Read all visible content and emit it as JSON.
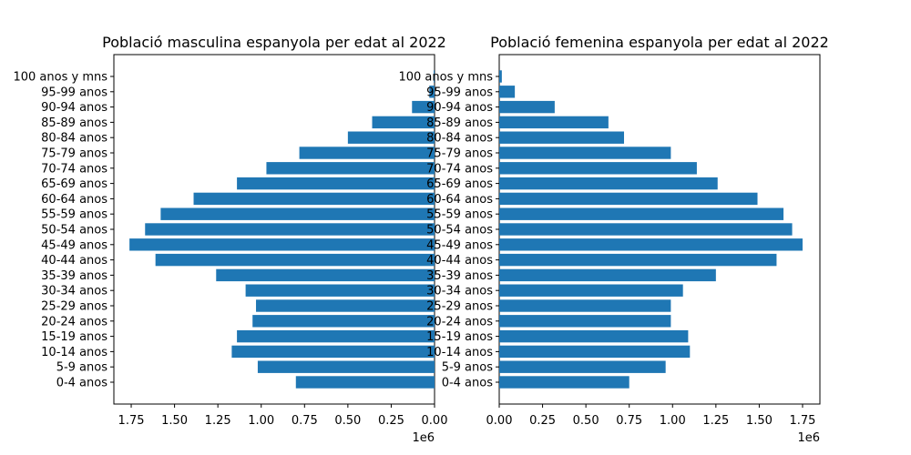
{
  "chart_data": [
    {
      "type": "bar",
      "orientation": "horizontal",
      "title": "Població masculina espanyola per edat al 2022",
      "xaxis_inverted": true,
      "xlim": [
        1.85,
        0.0
      ],
      "xticks": [
        "1.75",
        "1.50",
        "1.25",
        "1.00",
        "0.75",
        "0.50",
        "0.25",
        "0.00"
      ],
      "xtick_values": [
        1.75,
        1.5,
        1.25,
        1.0,
        0.75,
        0.5,
        0.25,
        0.0
      ],
      "offset_label": "1e6",
      "categories": [
        "0-4 anos",
        "5-9 anos",
        "10-14 anos",
        "15-19 anos",
        "20-24 anos",
        "25-29 anos",
        "30-34 anos",
        "35-39 anos",
        "40-44 anos",
        "45-49 anos",
        "50-54 anos",
        "55-59 anos",
        "60-64 anos",
        "65-69 anos",
        "70-74 anos",
        "75-79 anos",
        "80-84 anos",
        "85-89 anos",
        "90-94 anos",
        "95-99 anos",
        "100 anos y mns"
      ],
      "values": [
        0.8,
        1.02,
        1.17,
        1.14,
        1.05,
        1.03,
        1.09,
        1.26,
        1.61,
        1.76,
        1.67,
        1.58,
        1.39,
        1.14,
        0.97,
        0.78,
        0.5,
        0.36,
        0.13,
        0.03,
        0.005
      ],
      "color": "#1f77b4",
      "grid": false
    },
    {
      "type": "bar",
      "orientation": "horizontal",
      "title": "Població femenina espanyola per edat al 2022",
      "xaxis_inverted": false,
      "xlim": [
        0.0,
        1.85
      ],
      "xticks": [
        "0.00",
        "0.25",
        "0.50",
        "0.75",
        "1.00",
        "1.25",
        "1.50",
        "1.75"
      ],
      "xtick_values": [
        0.0,
        0.25,
        0.5,
        0.75,
        1.0,
        1.25,
        1.5,
        1.75
      ],
      "offset_label": "1e6",
      "categories": [
        "0-4 anos",
        "5-9 anos",
        "10-14 anos",
        "15-19 anos",
        "20-24 anos",
        "25-29 anos",
        "30-34 anos",
        "35-39 anos",
        "40-44 anos",
        "45-49 anos",
        "50-54 anos",
        "55-59 anos",
        "60-64 anos",
        "65-69 anos",
        "70-74 anos",
        "75-79 anos",
        "80-84 anos",
        "85-89 anos",
        "90-94 anos",
        "95-99 anos",
        "100 anos y mns"
      ],
      "values": [
        0.75,
        0.96,
        1.1,
        1.09,
        0.99,
        0.99,
        1.06,
        1.25,
        1.6,
        1.75,
        1.69,
        1.64,
        1.49,
        1.26,
        1.14,
        0.99,
        0.72,
        0.63,
        0.32,
        0.09,
        0.015
      ],
      "color": "#1f77b4",
      "grid": false
    }
  ]
}
